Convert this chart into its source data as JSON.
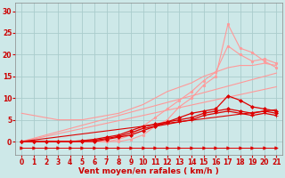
{
  "x": [
    0,
    1,
    2,
    3,
    4,
    5,
    6,
    7,
    8,
    9,
    10,
    11,
    12,
    13,
    14,
    15,
    16,
    17,
    18,
    19,
    20,
    21
  ],
  "series": [
    {
      "label": "pink_peaked_top",
      "color": "#ff9999",
      "linewidth": 0.8,
      "marker": "o",
      "markersize": 1.8,
      "y": [
        0.0,
        0.0,
        0.0,
        0.0,
        0.0,
        0.0,
        0.0,
        0.0,
        0.0,
        0.5,
        1.5,
        3.5,
        5.0,
        8.0,
        10.0,
        13.0,
        15.0,
        27.0,
        21.5,
        20.5,
        18.5,
        17.0
      ]
    },
    {
      "label": "pink_peaked_mid",
      "color": "#ff9999",
      "linewidth": 0.8,
      "marker": "o",
      "markersize": 1.8,
      "y": [
        0.0,
        0.0,
        0.0,
        0.0,
        0.0,
        0.0,
        0.0,
        0.0,
        0.5,
        1.5,
        3.5,
        5.5,
        7.5,
        9.5,
        11.5,
        14.0,
        16.0,
        22.0,
        20.0,
        18.5,
        19.0,
        18.0
      ]
    },
    {
      "label": "pink_diag1",
      "color": "#ff9999",
      "linewidth": 0.8,
      "marker": null,
      "markersize": 0,
      "y": [
        6.5,
        6.0,
        5.5,
        5.0,
        5.0,
        5.0,
        5.5,
        6.0,
        6.5,
        7.5,
        8.5,
        10.0,
        11.5,
        12.5,
        13.5,
        15.0,
        16.0,
        17.0,
        17.5,
        17.5,
        18.0,
        17.5
      ]
    },
    {
      "label": "pink_diag2",
      "color": "#ff9999",
      "linewidth": 0.8,
      "marker": null,
      "markersize": 0,
      "y": [
        0.0,
        0.6,
        1.2,
        1.8,
        2.4,
        3.0,
        3.6,
        4.2,
        4.8,
        5.4,
        6.0,
        6.6,
        7.2,
        7.8,
        8.4,
        9.0,
        9.6,
        10.2,
        10.8,
        11.4,
        12.0,
        12.6
      ]
    },
    {
      "label": "pink_diag3",
      "color": "#ff9999",
      "linewidth": 0.8,
      "marker": null,
      "markersize": 0,
      "y": [
        0.0,
        0.75,
        1.5,
        2.25,
        3.0,
        3.75,
        4.5,
        5.25,
        6.0,
        6.75,
        7.5,
        8.25,
        9.0,
        9.75,
        10.5,
        11.25,
        12.0,
        12.75,
        13.5,
        14.25,
        15.0,
        15.75
      ]
    },
    {
      "label": "dark_red_peaked",
      "color": "#dd0000",
      "linewidth": 0.9,
      "marker": "D",
      "markersize": 2.0,
      "y": [
        0.0,
        0.0,
        0.0,
        0.0,
        0.0,
        0.0,
        0.0,
        0.5,
        1.0,
        1.5,
        2.5,
        3.5,
        4.5,
        5.5,
        6.5,
        7.0,
        7.5,
        10.5,
        9.5,
        8.0,
        7.5,
        7.0
      ]
    },
    {
      "label": "dark_red_curve1",
      "color": "#dd0000",
      "linewidth": 0.9,
      "marker": "D",
      "markersize": 2.0,
      "y": [
        0.0,
        0.0,
        0.0,
        0.0,
        0.0,
        0.2,
        0.5,
        1.0,
        1.5,
        2.5,
        3.5,
        4.0,
        4.5,
        5.0,
        5.5,
        6.5,
        7.0,
        7.5,
        7.0,
        6.5,
        7.0,
        6.5
      ]
    },
    {
      "label": "dark_red_curve2",
      "color": "#dd0000",
      "linewidth": 0.9,
      "marker": "+",
      "markersize": 2.5,
      "y": [
        0.0,
        0.0,
        0.0,
        0.0,
        0.0,
        0.1,
        0.3,
        0.7,
        1.2,
        2.0,
        3.0,
        3.5,
        4.0,
        4.5,
        5.0,
        6.0,
        6.5,
        7.0,
        6.5,
        6.0,
        6.5,
        6.0
      ]
    },
    {
      "label": "dark_red_diag",
      "color": "#dd0000",
      "linewidth": 0.8,
      "marker": null,
      "markersize": 0,
      "y": [
        0.0,
        0.35,
        0.7,
        1.05,
        1.4,
        1.75,
        2.1,
        2.45,
        2.8,
        3.15,
        3.5,
        3.85,
        4.2,
        4.55,
        4.9,
        5.25,
        5.6,
        5.95,
        6.3,
        6.65,
        7.0,
        7.35
      ]
    },
    {
      "label": "arrow_line",
      "color": "#dd0000",
      "linewidth": 0.7,
      "marker": ">",
      "markersize": 2.5,
      "y": [
        -1.5,
        -1.5,
        -1.5,
        -1.5,
        -1.5,
        -1.5,
        -1.5,
        -1.5,
        -1.5,
        -1.5,
        -1.5,
        -1.5,
        -1.5,
        -1.5,
        -1.5,
        -1.5,
        -1.5,
        -1.5,
        -1.5,
        -1.5,
        -1.5,
        -1.5
      ]
    }
  ],
  "xlim": [
    -0.5,
    21.5
  ],
  "ylim": [
    -3.0,
    32
  ],
  "yticks": [
    0,
    5,
    10,
    15,
    20,
    25,
    30
  ],
  "xticks": [
    0,
    1,
    2,
    3,
    4,
    5,
    6,
    7,
    8,
    9,
    10,
    11,
    12,
    13,
    14,
    15,
    16,
    17,
    18,
    19,
    20,
    21
  ],
  "xlabel": "Vent moyen/en rafales ( km/h )",
  "background_color": "#cde8e8",
  "grid_color": "#aacccc",
  "text_color": "#cc0000",
  "tick_fontsize": 5.5,
  "xlabel_fontsize": 6.5
}
